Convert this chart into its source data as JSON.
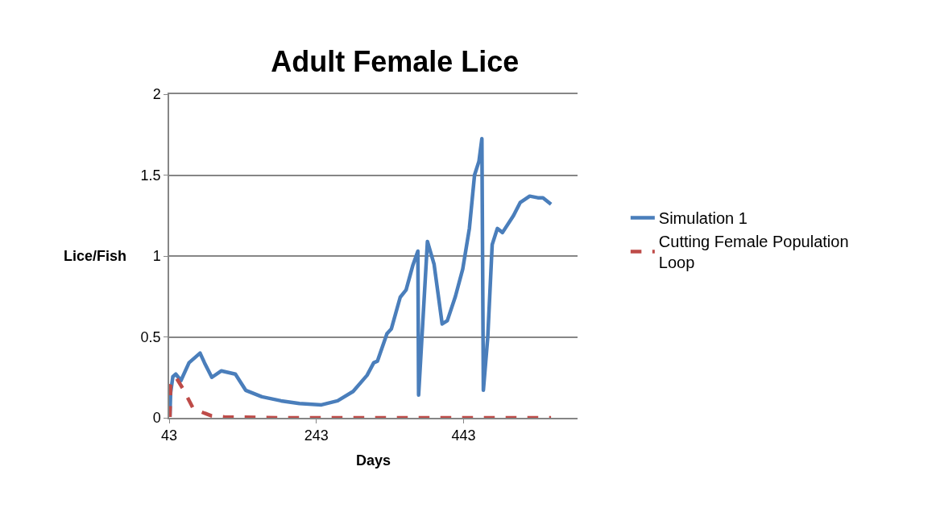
{
  "chart_data": {
    "type": "line",
    "title": "Adult Female Lice",
    "xlabel": "Days",
    "ylabel": "Lice/Fish",
    "xlim": [
      43,
      598
    ],
    "xticks": [
      43,
      243,
      443
    ],
    "ylim": [
      0,
      2
    ],
    "yticks": [
      0,
      0.5,
      1,
      1.5,
      2
    ],
    "grid": "y",
    "legend": "right",
    "series": [
      {
        "name": "Simulation 1",
        "color": "#4a7ebb",
        "line_style": "solid",
        "x": [
          44,
          45,
          48,
          52,
          59,
          70,
          85,
          91,
          101,
          114,
          133,
          147,
          169,
          195,
          220,
          250,
          272,
          293,
          312,
          321,
          326,
          339,
          345,
          357,
          365,
          374,
          381,
          382,
          394,
          403,
          414,
          421,
          432,
          442,
          451,
          458,
          464,
          468,
          470,
          476,
          482,
          489,
          496,
          511,
          520,
          533,
          544,
          551,
          562
        ],
        "values": [
          0.005,
          0.155,
          0.254,
          0.27,
          0.23,
          0.34,
          0.4,
          0.34,
          0.25,
          0.29,
          0.27,
          0.17,
          0.13,
          0.105,
          0.088,
          0.08,
          0.105,
          0.163,
          0.263,
          0.34,
          0.35,
          0.52,
          0.55,
          0.745,
          0.79,
          0.94,
          1.03,
          0.14,
          1.09,
          0.95,
          0.58,
          0.6,
          0.75,
          0.92,
          1.17,
          1.5,
          1.585,
          1.725,
          0.17,
          0.5,
          1.07,
          1.17,
          1.145,
          1.25,
          1.33,
          1.37,
          1.36,
          1.36,
          1.32
        ]
      },
      {
        "name": "Cutting Female Population Loop",
        "color": "#be4b48",
        "line_style": "dashed",
        "x": [
          44,
          45,
          50,
          53,
          63,
          76,
          100,
          118,
          200,
          300,
          400,
          500,
          562
        ],
        "values": [
          0.005,
          0.2,
          0.25,
          0.245,
          0.17,
          0.055,
          0.013,
          0.005,
          0,
          0,
          0,
          0,
          0
        ]
      }
    ]
  }
}
